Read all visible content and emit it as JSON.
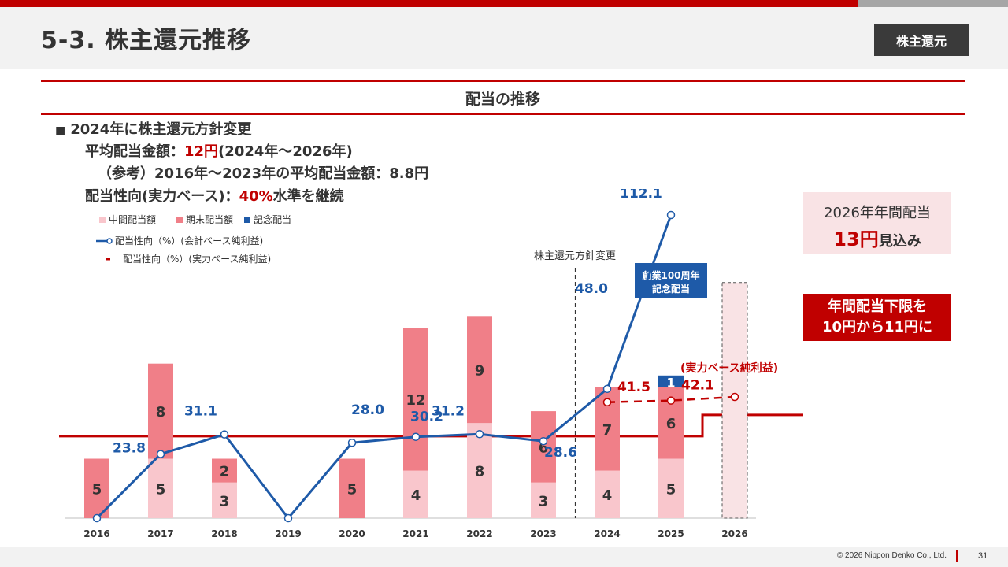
{
  "header": {
    "title": "5-3. 株主還元推移",
    "section_tag": "株主還元"
  },
  "subtitle": "配当の推移",
  "policy": {
    "bullet": "■",
    "line1": "2024年に株主還元方針変更",
    "line2_prefix": "平均配当金額：",
    "line2_value": "12円",
    "line2_suffix": "(2024年～2026年)",
    "line3": "（参考）2016年～2023年の平均配当金額：8.8円",
    "line4_prefix": "配当性向(実力ベース)：",
    "line4_value": "40%",
    "line4_suffix": "水準を継続"
  },
  "forecast": {
    "line1": "2026年年間配当",
    "value": "13円",
    "suffix": "見込み"
  },
  "floor_note": {
    "line1": "年間配当下限を",
    "line2": "10円から11円に"
  },
  "footer": {
    "copyright": "© 2026 Nippon Denko Co., Ltd.",
    "page": "31"
  },
  "colors": {
    "interim": "#f9c6cc",
    "final": "#f07f88",
    "commemorative": "#1e5aa8",
    "payout_accounting": "#1e5aa8",
    "payout_real": "#c00000",
    "accent": "#c00000"
  },
  "chart_data": {
    "type": "bar",
    "categories": [
      "2016",
      "2017",
      "2018",
      "2019",
      "2020",
      "2021",
      "2022",
      "2023",
      "2024",
      "2025",
      "2026"
    ],
    "legend": {
      "interim": "中間配当額",
      "final": "期末配当額",
      "commemorative": "記念配当",
      "payout_accounting": "配当性向（%）(会計ベース純利益)",
      "payout_real": "配当性向（%）(実力ベース純利益)"
    },
    "series": [
      {
        "name": "中間配当額",
        "values": [
          null,
          5,
          3,
          null,
          null,
          4,
          8,
          3,
          4,
          5,
          null
        ]
      },
      {
        "name": "期末配当額",
        "values": [
          5,
          8,
          2,
          null,
          5,
          12,
          9,
          6,
          7,
          6,
          null
        ]
      },
      {
        "name": "記念配当",
        "values": [
          null,
          null,
          null,
          null,
          null,
          null,
          null,
          null,
          null,
          1,
          null
        ]
      }
    ],
    "line_series": [
      {
        "name": "配当性向（%）(会計ベース純利益)",
        "values": [
          0,
          23.8,
          31.1,
          0,
          28.0,
          30.2,
          31.2,
          28.6,
          48.0,
          112.1,
          null
        ],
        "labels": [
          "",
          "23.8",
          "31.1",
          "",
          "28.0",
          "30.2",
          "31.2",
          "28.6",
          "48.0",
          "112.1",
          ""
        ]
      },
      {
        "name": "配当性向（%）(実力ベース純利益)",
        "values": [
          null,
          null,
          null,
          null,
          null,
          null,
          null,
          null,
          41.5,
          42.1,
          40
        ],
        "labels": [
          "",
          "",
          "",
          "",
          "",
          "",
          "",
          "",
          "41.5",
          "42.1",
          ""
        ]
      }
    ],
    "reference_line": {
      "value": 11,
      "label": "年間配当下限"
    },
    "forecast_category": "2026",
    "forecast_total": 13,
    "annotations": {
      "policy_change": "株主還元方針変更",
      "centennial": [
        "創業100周年",
        "記念配当"
      ],
      "real_basis": "(実力ベース純利益)"
    }
  }
}
